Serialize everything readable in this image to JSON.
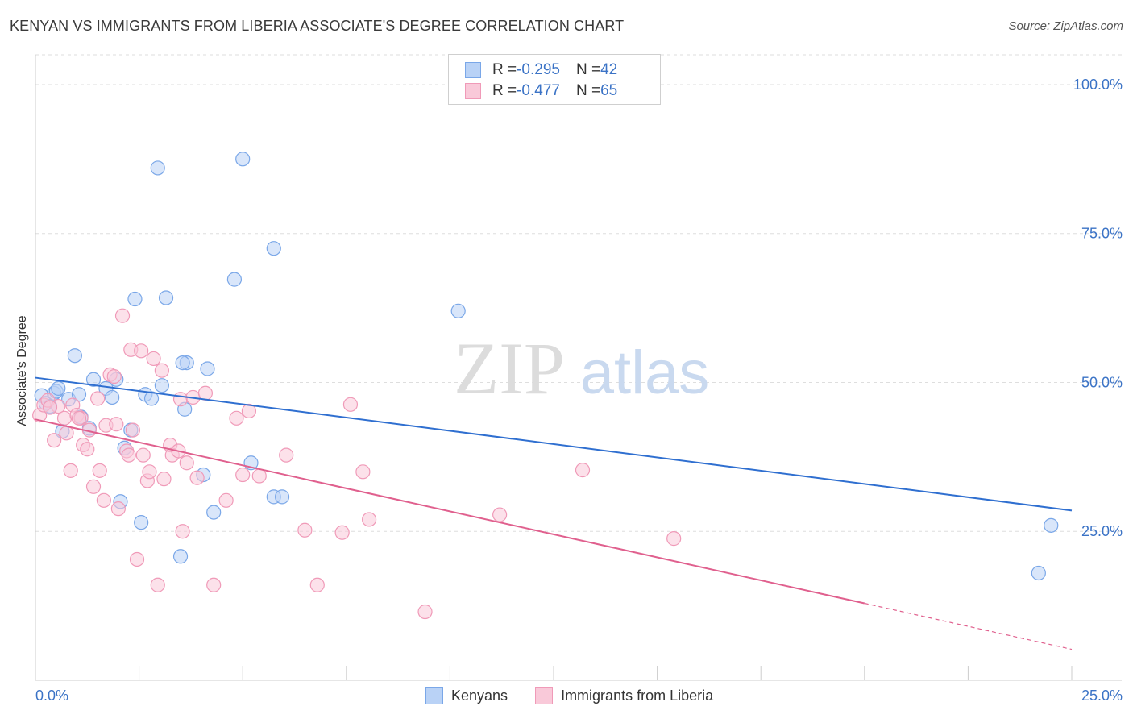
{
  "title": "KENYAN VS IMMIGRANTS FROM LIBERIA ASSOCIATE'S DEGREE CORRELATION CHART",
  "source": "Source: ZipAtlas.com",
  "watermark": {
    "zip": "ZIP",
    "atlas": "atlas"
  },
  "stats": [
    {
      "r_label": "R = ",
      "r_value": "-0.295",
      "n_label": "N = ",
      "n_value": "42",
      "color": "#7aa7e8",
      "fill": "#b9d2f6"
    },
    {
      "r_label": "R = ",
      "r_value": "-0.477",
      "n_label": "N = ",
      "n_value": "65",
      "color": "#f09ab8",
      "fill": "#f9c9d9"
    }
  ],
  "chart_data": {
    "type": "scatter",
    "title": "KENYAN VS IMMIGRANTS FROM LIBERIA ASSOCIATE'S DEGREE CORRELATION CHART",
    "xlabel": "",
    "ylabel": "Associate's Degree",
    "xlim": [
      0,
      25
    ],
    "ylim": [
      0,
      105
    ],
    "x_tick_labels": [
      "0.0%",
      "25.0%"
    ],
    "y_ticks": [
      25,
      50,
      75,
      100
    ],
    "y_tick_labels": [
      "25.0%",
      "50.0%",
      "75.0%",
      "100.0%"
    ],
    "grid": "horizontal dashed",
    "legend_position": "bottom",
    "series": [
      {
        "name": "Kenyans",
        "color": "#7aa7e8",
        "fill": "#b9d2f6",
        "line_color": "#2f6fd0",
        "trend": {
          "x": [
            0,
            25
          ],
          "y": [
            50.8,
            28.5
          ],
          "dashed_from": null
        },
        "points": [
          [
            0.15,
            47.8
          ],
          [
            0.25,
            46.5
          ],
          [
            0.35,
            46.0
          ],
          [
            0.45,
            48.2
          ],
          [
            0.5,
            48.5
          ],
          [
            0.55,
            49.0
          ],
          [
            0.65,
            41.8
          ],
          [
            0.8,
            47.2
          ],
          [
            0.95,
            54.5
          ],
          [
            1.05,
            48.0
          ],
          [
            1.1,
            44.2
          ],
          [
            1.3,
            42.3
          ],
          [
            1.4,
            50.5
          ],
          [
            1.7,
            49.0
          ],
          [
            1.85,
            47.5
          ],
          [
            1.95,
            50.5
          ],
          [
            2.05,
            30.0
          ],
          [
            2.15,
            39.0
          ],
          [
            2.3,
            42.0
          ],
          [
            2.4,
            64.0
          ],
          [
            2.55,
            26.5
          ],
          [
            2.65,
            48.0
          ],
          [
            2.8,
            47.3
          ],
          [
            2.95,
            86.0
          ],
          [
            3.05,
            49.5
          ],
          [
            3.15,
            64.2
          ],
          [
            3.5,
            20.8
          ],
          [
            3.6,
            45.5
          ],
          [
            3.65,
            53.3
          ],
          [
            4.05,
            34.5
          ],
          [
            4.15,
            52.3
          ],
          [
            4.3,
            28.2
          ],
          [
            4.8,
            67.3
          ],
          [
            5.0,
            87.5
          ],
          [
            5.2,
            36.5
          ],
          [
            5.75,
            30.8
          ],
          [
            5.95,
            30.8
          ],
          [
            5.75,
            72.5
          ],
          [
            10.2,
            62.0
          ],
          [
            24.5,
            26.0
          ],
          [
            24.2,
            18.0
          ],
          [
            3.55,
            53.3
          ]
        ]
      },
      {
        "name": "Immigrants from Liberia",
        "color": "#f09ab8",
        "fill": "#f9c9d9",
        "line_color": "#e0608e",
        "trend": {
          "x": [
            0,
            25
          ],
          "y": [
            43.8,
            5.2
          ],
          "dashed_from": 20
        },
        "points": [
          [
            0.1,
            44.5
          ],
          [
            0.2,
            46.2
          ],
          [
            0.3,
            47.0
          ],
          [
            0.45,
            40.3
          ],
          [
            0.55,
            46.0
          ],
          [
            0.7,
            44.0
          ],
          [
            0.75,
            41.5
          ],
          [
            0.85,
            35.2
          ],
          [
            0.9,
            46.2
          ],
          [
            1.0,
            44.5
          ],
          [
            1.1,
            44.0
          ],
          [
            1.15,
            39.5
          ],
          [
            1.25,
            38.8
          ],
          [
            1.3,
            42.0
          ],
          [
            1.4,
            32.5
          ],
          [
            1.5,
            47.3
          ],
          [
            1.55,
            35.2
          ],
          [
            1.65,
            30.2
          ],
          [
            1.7,
            42.8
          ],
          [
            1.8,
            51.3
          ],
          [
            1.9,
            51.0
          ],
          [
            1.95,
            43.0
          ],
          [
            2.0,
            28.8
          ],
          [
            2.1,
            61.2
          ],
          [
            2.2,
            38.5
          ],
          [
            2.25,
            37.8
          ],
          [
            2.3,
            55.5
          ],
          [
            2.35,
            42.0
          ],
          [
            2.45,
            20.3
          ],
          [
            2.55,
            55.3
          ],
          [
            2.6,
            37.8
          ],
          [
            2.7,
            33.5
          ],
          [
            2.75,
            35.0
          ],
          [
            2.85,
            54.0
          ],
          [
            2.95,
            16.0
          ],
          [
            3.05,
            52.0
          ],
          [
            3.1,
            33.8
          ],
          [
            3.25,
            39.5
          ],
          [
            3.3,
            37.8
          ],
          [
            3.45,
            38.5
          ],
          [
            3.5,
            47.2
          ],
          [
            3.55,
            25.0
          ],
          [
            3.65,
            36.5
          ],
          [
            3.8,
            47.5
          ],
          [
            3.9,
            34.0
          ],
          [
            4.1,
            48.2
          ],
          [
            4.3,
            16.0
          ],
          [
            4.6,
            30.2
          ],
          [
            4.85,
            44.0
          ],
          [
            5.0,
            34.5
          ],
          [
            5.15,
            45.2
          ],
          [
            5.4,
            34.3
          ],
          [
            6.05,
            37.8
          ],
          [
            6.5,
            25.2
          ],
          [
            6.8,
            16.0
          ],
          [
            7.4,
            24.8
          ],
          [
            7.6,
            46.3
          ],
          [
            7.9,
            35.0
          ],
          [
            8.05,
            27.0
          ],
          [
            9.4,
            11.5
          ],
          [
            11.2,
            27.8
          ],
          [
            13.2,
            35.3
          ],
          [
            15.4,
            23.8
          ],
          [
            0.35,
            45.8
          ],
          [
            1.05,
            44.0
          ]
        ]
      }
    ]
  }
}
